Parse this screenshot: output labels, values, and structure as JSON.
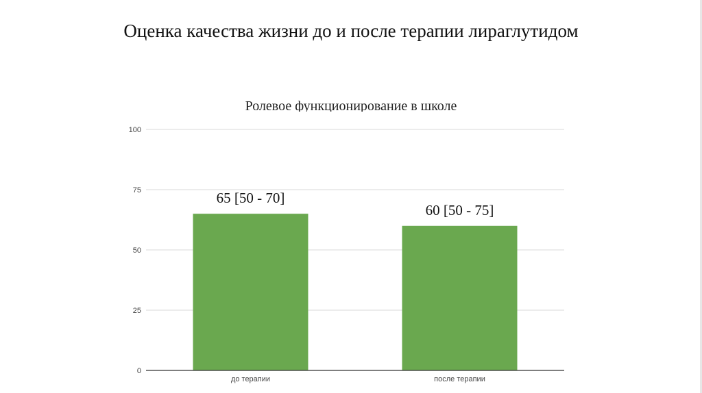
{
  "slide": {
    "title": "Оценка качества жизни до и после терапии лираглутидом"
  },
  "chart_data": {
    "type": "bar",
    "title": "Ролевое функционирование в школе",
    "xlabel": "",
    "ylabel": "",
    "categories": [
      "до терапии",
      "после терапии"
    ],
    "values": [
      65,
      60
    ],
    "data_labels": [
      "65 [50 - 70]",
      "60 [50 - 75]"
    ],
    "ylim": [
      0,
      100
    ],
    "yticks": [
      0,
      25,
      50,
      75,
      100
    ],
    "grid": true,
    "legend": "none",
    "bar_color": "#6aa84f",
    "grid_color": "#d9d9d9",
    "axis_color": "#333333"
  }
}
